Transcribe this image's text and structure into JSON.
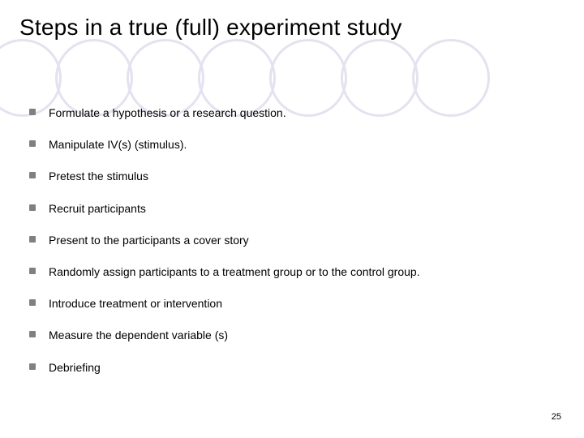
{
  "slide": {
    "title": "Steps in a true (full) experiment study",
    "page_number": "25",
    "colors": {
      "background": "#ffffff",
      "text": "#000000",
      "bullet": "#808080",
      "circle_border": "#e4e2f0"
    },
    "typography": {
      "title_fontsize": 28,
      "title_weight": "normal",
      "item_fontsize": 14,
      "page_number_fontsize": 11,
      "font_family": "Arial"
    },
    "decorative_circles": {
      "count": 7,
      "diameter": 96,
      "border_width": 3,
      "overlap": 8
    },
    "items": [
      "Formulate a hypothesis or a research question.",
      "Manipulate IV(s) (stimulus).",
      "Pretest the stimulus",
      "Recruit participants",
      "Present  to the participants a cover story",
      "Randomly assign participants to a treatment group or to the control group.",
      "Introduce treatment or intervention",
      "Measure the dependent variable (s)",
      "Debriefing"
    ]
  }
}
